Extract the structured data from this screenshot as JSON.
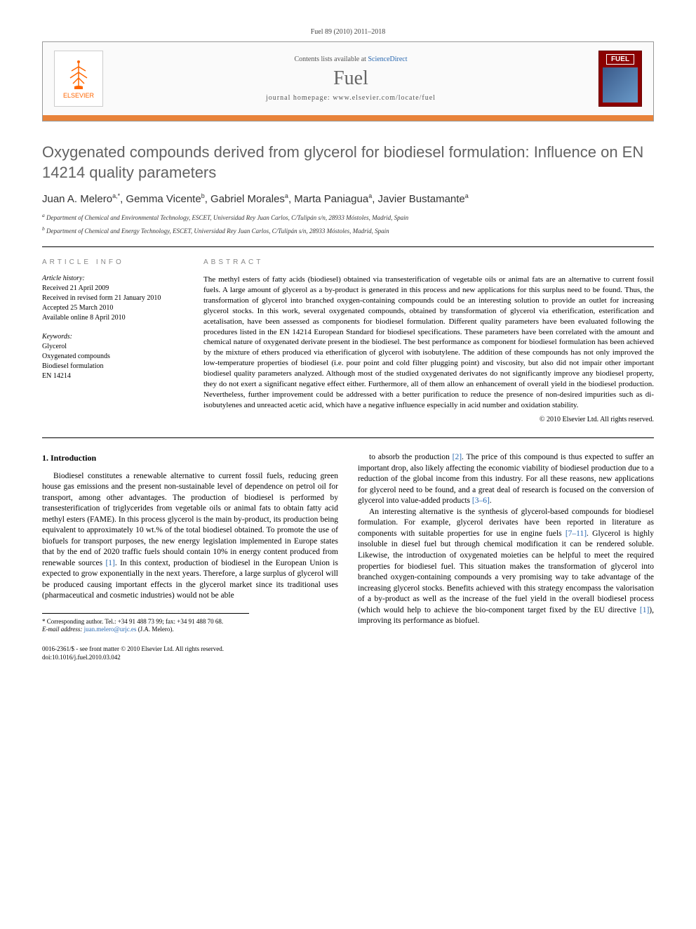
{
  "header": {
    "citation": "Fuel 89 (2010) 2011–2018",
    "contents_prefix": "Contents lists available at ",
    "contents_link": "ScienceDirect",
    "journal_title": "Fuel",
    "homepage_label": "journal homepage: www.elsevier.com/locate/fuel",
    "publisher_name": "ELSEVIER",
    "cover_label": "FUEL"
  },
  "article": {
    "title": "Oxygenated compounds derived from glycerol for biodiesel formulation: Influence on EN 14214 quality parameters",
    "authors_html": "Juan A. Melero|a,*|, Gemma Vicente|b|, Gabriel Morales|a|, Marta Paniagua|a|, Javier Bustamante|a|",
    "affiliations": [
      "a Department of Chemical and Environmental Technology, ESCET, Universidad Rey Juan Carlos, C/Tulipán s/n, 28933 Móstoles, Madrid, Spain",
      "b Department of Chemical and Energy Technology, ESCET, Universidad Rey Juan Carlos, C/Tulipán s/n, 28933 Móstoles, Madrid, Spain"
    ]
  },
  "info": {
    "header": "ARTICLE INFO",
    "history_label": "Article history:",
    "history": [
      "Received 21 April 2009",
      "Received in revised form 21 January 2010",
      "Accepted 25 March 2010",
      "Available online 8 April 2010"
    ],
    "keywords_label": "Keywords:",
    "keywords": [
      "Glycerol",
      "Oxygenated compounds",
      "Biodiesel formulation",
      "EN 14214"
    ]
  },
  "abstract": {
    "header": "ABSTRACT",
    "text": "The methyl esters of fatty acids (biodiesel) obtained via transesterification of vegetable oils or animal fats are an alternative to current fossil fuels. A large amount of glycerol as a by-product is generated in this process and new applications for this surplus need to be found. Thus, the transformation of glycerol into branched oxygen-containing compounds could be an interesting solution to provide an outlet for increasing glycerol stocks. In this work, several oxygenated compounds, obtained by transformation of glycerol via etherification, esterification and acetalisation, have been assessed as components for biodiesel formulation. Different quality parameters have been evaluated following the procedures listed in the EN 14214 European Standard for biodiesel specifications. These parameters have been correlated with the amount and chemical nature of oxygenated derivate present in the biodiesel. The best performance as component for biodiesel formulation has been achieved by the mixture of ethers produced via etherification of glycerol with isobutylene. The addition of these compounds has not only improved the low-temperature properties of biodiesel (i.e. pour point and cold filter plugging point) and viscosity, but also did not impair other important biodiesel quality parameters analyzed. Although most of the studied oxygenated derivates do not significantly improve any biodiesel property, they do not exert a significant negative effect either. Furthermore, all of them allow an enhancement of overall yield in the biodiesel production. Nevertheless, further improvement could be addressed with a better purification to reduce the presence of non-desired impurities such as di-isobutylenes and unreacted acetic acid, which have a negative influence especially in acid number and oxidation stability.",
    "copyright": "© 2010 Elsevier Ltd. All rights reserved."
  },
  "body": {
    "section_head": "1. Introduction",
    "col1_p1": "Biodiesel constitutes a renewable alternative to current fossil fuels, reducing green house gas emissions and the present non-sustainable level of dependence on petrol oil for transport, among other advantages. The production of biodiesel is performed by transesterification of triglycerides from vegetable oils or animal fats to obtain fatty acid methyl esters (FAME). In this process glycerol is the main by-product, its production being equivalent to approximately 10 wt.% of the total biodiesel obtained. To promote the use of biofuels for transport purposes, the new energy legislation implemented in Europe states that by the end of 2020 traffic fuels should contain 10% in energy content produced from renewable sources ",
    "col1_ref1": "[1]",
    "col1_p1b": ". In this context, production of biodiesel in the European Union is expected to grow exponentially in the next years. Therefore, a large surplus of glycerol will be produced causing important effects in the glycerol market since its traditional uses (pharmaceutical and cosmetic industries) would not be able",
    "col2_p1": "to absorb the production ",
    "col2_ref1": "[2]",
    "col2_p1b": ". The price of this compound is thus expected to suffer an important drop, also likely affecting the economic viability of biodiesel production due to a reduction of the global income from this industry. For all these reasons, new applications for glycerol need to be found, and a great deal of research is focused on the conversion of glycerol into value-added products ",
    "col2_ref2": "[3–6]",
    "col2_p1c": ".",
    "col2_p2": "An interesting alternative is the synthesis of glycerol-based compounds for biodiesel formulation. For example, glycerol derivates have been reported in literature as components with suitable properties for use in engine fuels ",
    "col2_ref3": "[7–11]",
    "col2_p2b": ". Glycerol is highly insoluble in diesel fuel but through chemical modification it can be rendered soluble. Likewise, the introduction of oxygenated moieties can be helpful to meet the required properties for biodiesel fuel. This situation makes the transformation of glycerol into branched oxygen-containing compounds a very promising way to take advantage of the increasing glycerol stocks. Benefits achieved with this strategy encompass the valorisation of a by-product as well as the increase of the fuel yield in the overall biodiesel process (which would help to achieve the bio-component target fixed by the EU directive ",
    "col2_ref4": "[1]",
    "col2_p2c": "), improving its performance as biofuel."
  },
  "footnotes": {
    "corresponding": "* Corresponding author. Tel.: +34 91 488 73 99; fax: +34 91 488 70 68.",
    "email_label": "E-mail address: ",
    "email": "juan.melero@urjc.es",
    "email_suffix": " (J.A. Melero).",
    "front_matter": "0016-2361/$ - see front matter © 2010 Elsevier Ltd. All rights reserved.",
    "doi": "doi:10.1016/j.fuel.2010.03.042"
  },
  "colors": {
    "orange_bar": "#e8833a",
    "link": "#2968b0",
    "title_gray": "#626262",
    "cover_bg": "#8b0000"
  }
}
